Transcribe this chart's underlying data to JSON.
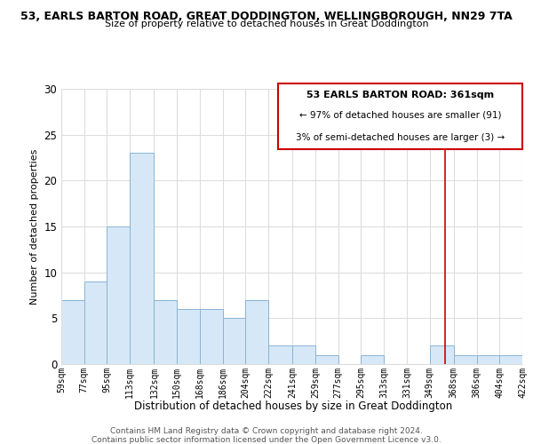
{
  "title_top": "53, EARLS BARTON ROAD, GREAT DODDINGTON, WELLINGBOROUGH, NN29 7TA",
  "title_sub": "Size of property relative to detached houses in Great Doddington",
  "xlabel": "Distribution of detached houses by size in Great Doddington",
  "ylabel": "Number of detached properties",
  "bin_edges": [
    59,
    77,
    95,
    113,
    132,
    150,
    168,
    186,
    204,
    222,
    241,
    259,
    277,
    295,
    313,
    331,
    349,
    368,
    386,
    404,
    422
  ],
  "counts": [
    7,
    9,
    15,
    23,
    7,
    6,
    6,
    5,
    7,
    2,
    2,
    1,
    0,
    1,
    0,
    0,
    2,
    1,
    1,
    1
  ],
  "bar_fill": "#d6e8f7",
  "bar_edge": "#8ab4d4",
  "vline_x": 361,
  "vline_color": "#cc0000",
  "ylim": [
    0,
    30
  ],
  "yticks": [
    0,
    5,
    10,
    15,
    20,
    25,
    30
  ],
  "tick_labels": [
    "59sqm",
    "77sqm",
    "95sqm",
    "113sqm",
    "132sqm",
    "150sqm",
    "168sqm",
    "186sqm",
    "204sqm",
    "222sqm",
    "241sqm",
    "259sqm",
    "277sqm",
    "295sqm",
    "313sqm",
    "331sqm",
    "349sqm",
    "368sqm",
    "386sqm",
    "404sqm",
    "422sqm"
  ],
  "box_text_line1": "53 EARLS BARTON ROAD: 361sqm",
  "box_text_line2": "← 97% of detached houses are smaller (91)",
  "box_text_line3": "3% of semi-detached houses are larger (3) →",
  "box_edge_color": "#cc0000",
  "footnote1": "Contains HM Land Registry data © Crown copyright and database right 2024.",
  "footnote2": "Contains public sector information licensed under the Open Government Licence v3.0.",
  "background_color": "#ffffff",
  "grid_color": "#dddddd"
}
